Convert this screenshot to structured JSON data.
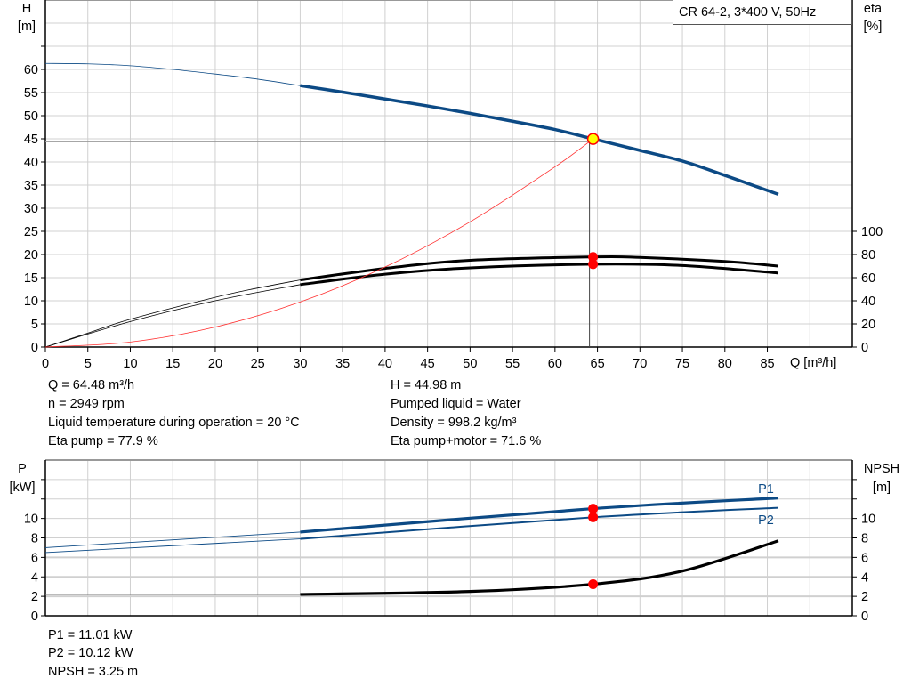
{
  "title_box": "CR 64-2, 3*400 V, 50Hz",
  "colors": {
    "head": "#0c4a85",
    "eta": "#000000",
    "system": "#ff3030",
    "power": "#0c4a85",
    "npsh": "#000000",
    "marker": "#ff0000",
    "duty_point": "#ffff00",
    "grid": "#d0d0d0"
  },
  "results_left": [
    "Q = 64.48 m³/h",
    "n = 2949 rpm",
    "Liquid temperature during operation = 20 °C",
    "Eta pump = 77.9 %"
  ],
  "results_right": [
    "H = 44.98 m",
    "Pumped liquid = Water",
    "Density = 998.2 kg/m³",
    "Eta pump+motor = 71.6 %"
  ],
  "results_bottom": [
    "P1 = 11.01 kW",
    "P2 = 10.12 kW",
    "NPSH = 3.25 m"
  ],
  "chart_data": [
    {
      "type": "line",
      "xlabel": "Q [m³/h]",
      "ylabel": "H\n[m]",
      "y2label": "eta\n[%]",
      "xlim": [
        0,
        95
      ],
      "ylim": [
        0,
        75
      ],
      "y2lim": [
        0,
        100
      ],
      "xticks": [
        0,
        5,
        10,
        15,
        20,
        25,
        30,
        35,
        40,
        45,
        50,
        55,
        60,
        65,
        70,
        75,
        80,
        85
      ],
      "yticks": [
        0,
        5,
        10,
        15,
        20,
        25,
        30,
        35,
        40,
        45,
        50,
        55,
        60
      ],
      "y2ticks": [
        0,
        20,
        40,
        60,
        80,
        100
      ],
      "grid": true,
      "operating_point": {
        "Q": 64.48,
        "H": 44.98,
        "eta_pump": 77.9,
        "eta_pump_motor": 71.6
      },
      "series": [
        {
          "key": "head",
          "axis": "y",
          "x": [
            0,
            5,
            10,
            15,
            20,
            25,
            30,
            35,
            40,
            45,
            50,
            55,
            60,
            64.48,
            70,
            75,
            80,
            86.3
          ],
          "y": [
            61.3,
            61.2,
            60.8,
            60.0,
            59.0,
            57.9,
            56.5,
            55.1,
            53.6,
            52.1,
            50.5,
            48.8,
            47.0,
            44.98,
            42.5,
            40.2,
            37.1,
            33.0
          ]
        },
        {
          "key": "eta_pump",
          "axis": "y2",
          "x": [
            0,
            5,
            10,
            20,
            25,
            30,
            40,
            50,
            64.48,
            70,
            80,
            86.3
          ],
          "y": [
            0,
            12,
            24,
            43,
            51,
            58,
            68,
            75,
            77.9,
            77.5,
            74,
            70
          ]
        },
        {
          "key": "eta_pump_motor",
          "axis": "y2",
          "x": [
            0,
            10,
            20,
            30,
            40,
            50,
            64.48,
            75,
            86.3
          ],
          "y": [
            0,
            22,
            40,
            54,
            63,
            68.5,
            71.6,
            70.5,
            64
          ]
        },
        {
          "key": "system",
          "axis": "y",
          "x": [
            0,
            10,
            20,
            30,
            40,
            50,
            60,
            64.48
          ],
          "y": [
            0,
            1.08,
            4.33,
            9.74,
            17.3,
            27.05,
            38.95,
            44.98
          ]
        }
      ]
    },
    {
      "type": "line",
      "ylabel": "P\n[kW]",
      "y2label": "NPSH\n[m]",
      "xlim": [
        0,
        95
      ],
      "ylim": [
        0,
        16
      ],
      "y2lim": [
        0,
        16
      ],
      "yticks": [
        0,
        2,
        4,
        6,
        8,
        10
      ],
      "y2ticks": [
        0,
        2,
        4,
        6,
        8,
        10
      ],
      "grid": true,
      "series": [
        {
          "key": "P1",
          "name": "P1",
          "x": [
            0,
            30,
            64.48,
            86.3
          ],
          "y": [
            7.0,
            8.6,
            11.01,
            12.1
          ]
        },
        {
          "key": "P2",
          "name": "P2",
          "x": [
            0,
            30,
            64.48,
            86.3
          ],
          "y": [
            6.5,
            7.9,
            10.12,
            11.1
          ]
        },
        {
          "key": "NPSH",
          "x": [
            0,
            30,
            50,
            64.48,
            75,
            86.3
          ],
          "y": [
            2.2,
            2.2,
            2.5,
            3.25,
            4.6,
            7.7
          ]
        }
      ]
    }
  ]
}
